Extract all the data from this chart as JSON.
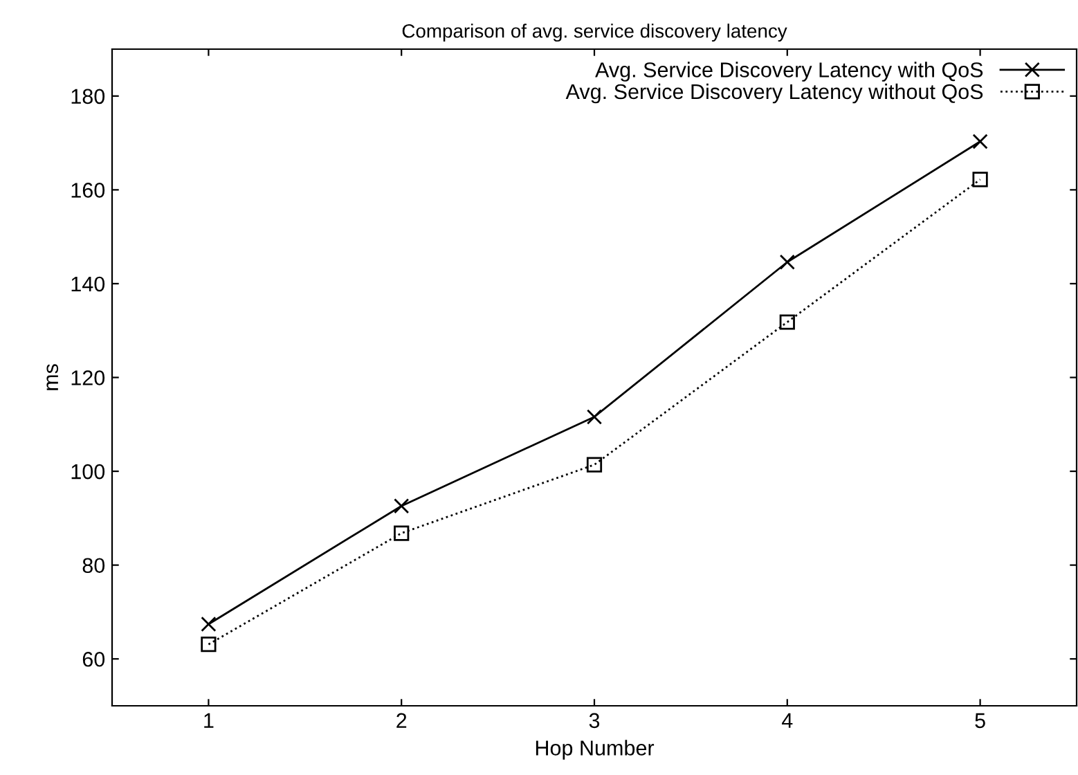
{
  "chart_data": {
    "type": "line",
    "title": "Comparison of avg. service discovery latency",
    "xlabel": "Hop Number",
    "ylabel": "ms",
    "x": [
      1,
      2,
      3,
      4,
      5
    ],
    "series": [
      {
        "name": "Avg. Service Discovery Latency with QoS",
        "color": "#000000",
        "marker": "cross",
        "line_style": "solid",
        "values": [
          67.4,
          92.6,
          111.6,
          144.6,
          170.3
        ]
      },
      {
        "name": "Avg. Service Discovery Latency without QoS",
        "color": "#000000",
        "marker": "square",
        "line_style": "dotted",
        "values": [
          63.1,
          86.8,
          101.4,
          131.8,
          162.2
        ]
      }
    ],
    "xlim": [
      0.5,
      5.5
    ],
    "xticks": [
      1,
      2,
      3,
      4,
      5
    ],
    "ylim": [
      50,
      190
    ],
    "yticks": [
      60,
      80,
      100,
      120,
      140,
      160,
      180
    ],
    "grid": false,
    "legend": "top right"
  }
}
